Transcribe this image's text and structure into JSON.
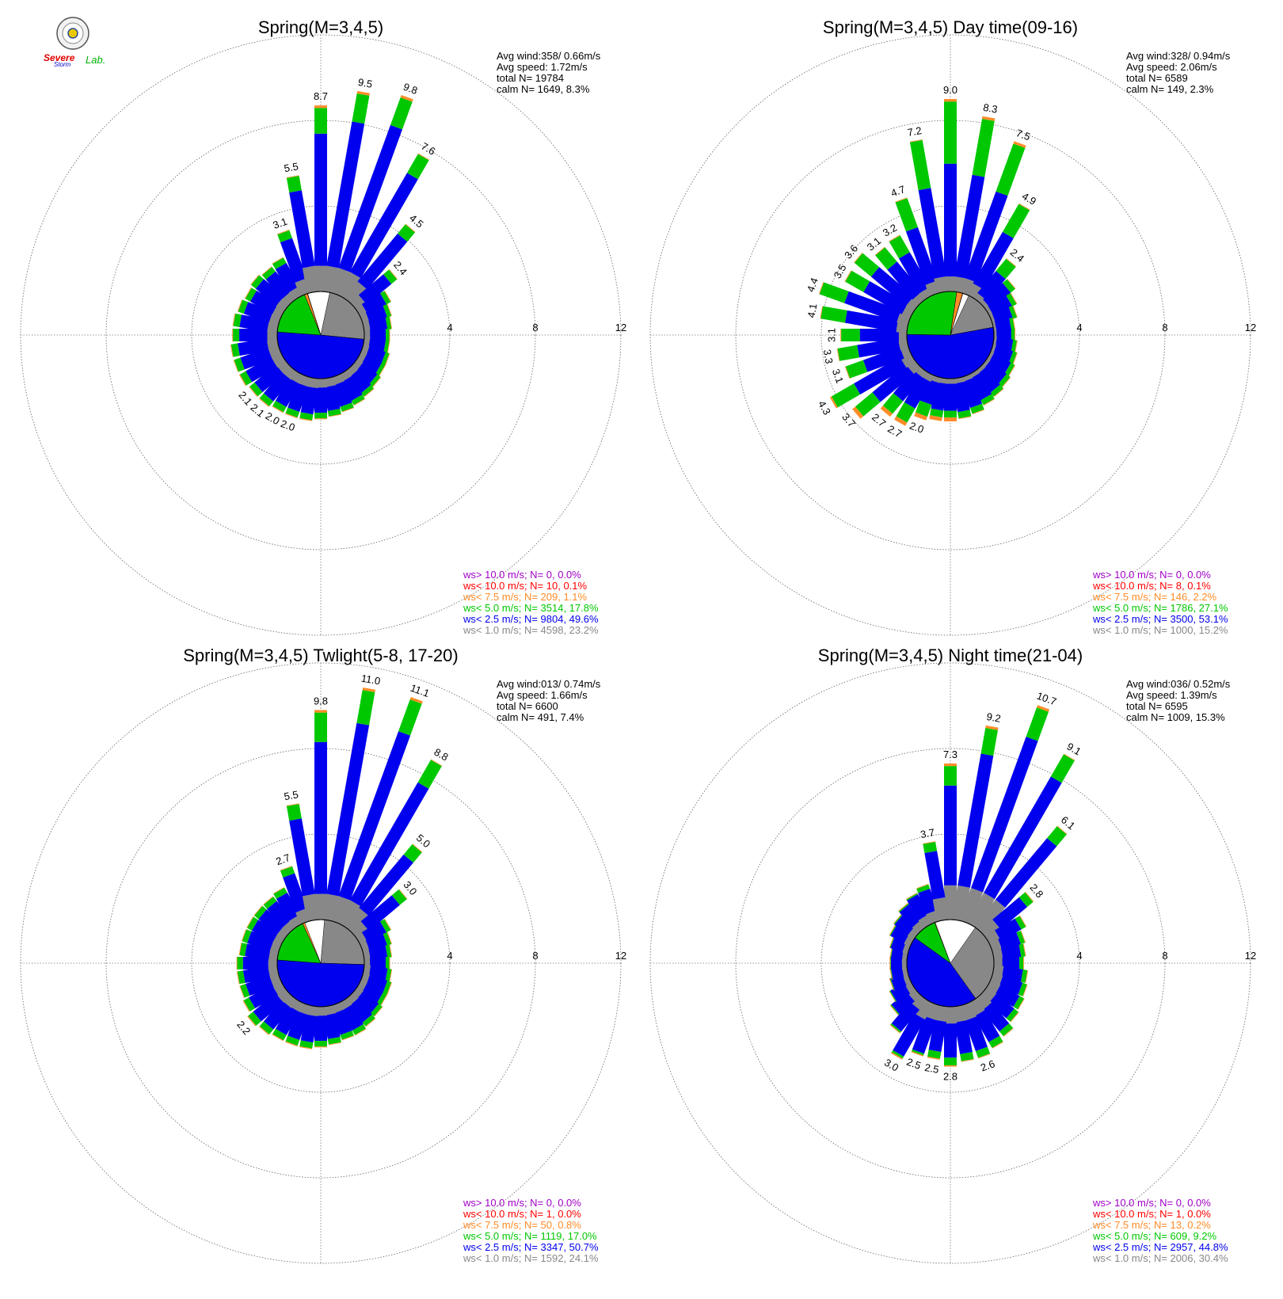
{
  "logo": {
    "line1": "Severe",
    "line2": "Storm",
    "line3": "Lab."
  },
  "axis_ticks": [
    "4",
    "8",
    "12"
  ],
  "palette": {
    "gray": "#888888",
    "blue": "#0000ee",
    "green": "#00c800",
    "orange": "#ff8c28",
    "red": "#ff0000",
    "purple": "#a000c8"
  },
  "chart_data": [
    {
      "type": "windrose",
      "title": "Spring(M=3,4,5)",
      "rlim": [
        0,
        12
      ],
      "stats": [
        "Avg wind:358/ 0.66m/s",
        "Avg speed: 1.72m/s",
        "total N=      19784",
        "calm N=   1649,   8.3%"
      ],
      "legend": [
        "ws> 10.0 m/s; N=     0,  0.0%",
        "ws< 10.0 m/s; N=    10,  0.1%",
        "ws<  7.5 m/s; N=   209,  1.1%",
        "ws<  5.0 m/s; N=  3514, 17.8%",
        "ws<  2.5 m/s; N=  9804, 49.6%",
        "ws<  1.0 m/s; N=  4598, 23.2%"
      ],
      "pie_percent": [
        23.2,
        49.6,
        17.8,
        1.1,
        0.1,
        0.0
      ],
      "directions_deg": [
        0,
        10,
        20,
        30,
        40,
        50,
        60,
        70,
        80,
        90,
        100,
        110,
        120,
        130,
        140,
        150,
        160,
        170,
        180,
        190,
        200,
        210,
        220,
        230,
        240,
        250,
        260,
        270,
        280,
        290,
        300,
        310,
        320,
        330,
        340,
        350
      ],
      "bar_percent": [
        8.7,
        9.5,
        9.8,
        7.6,
        4.5,
        2.4,
        1.6,
        1.4,
        1.3,
        1.2,
        1.2,
        1.3,
        1.3,
        1.4,
        1.5,
        1.6,
        1.7,
        1.8,
        1.9,
        2.0,
        2.0,
        2.0,
        2.1,
        2.1,
        2.2,
        2.2,
        2.2,
        2.1,
        2.1,
        2.0,
        1.9,
        2.0,
        1.9,
        2.0,
        3.1,
        5.5
      ],
      "bar_labels": {
        "0": "8.7",
        "10": "9.5",
        "20": "9.8",
        "30": "7.6",
        "40": "4.5",
        "50": "2.4",
        "200": "2.0",
        "210": "2.0",
        "220": "2.1",
        "230": "2.1",
        "340": "3.1",
        "350": "5.5"
      }
    },
    {
      "type": "windrose",
      "title": "Spring(M=3,4,5) Day time(09-16)",
      "rlim": [
        0,
        12
      ],
      "stats": [
        "Avg wind:328/ 0.94m/s",
        "Avg speed: 2.06m/s",
        "total N=        6589",
        "calm N=     149,   2.3%"
      ],
      "legend": [
        "ws> 10.0 m/s; N=     0,  0.0%",
        "ws< 10.0 m/s; N=     8,  0.1%",
        "ws<  7.5 m/s; N=   146,  2.2%",
        "ws<  5.0 m/s; N=  1786, 27.1%",
        "ws<  2.5 m/s; N=  3500, 53.1%",
        "ws<  1.0 m/s; N=  1000, 15.2%"
      ],
      "pie_percent": [
        15.2,
        53.1,
        27.1,
        2.2,
        0.1,
        0.0
      ],
      "directions_deg": [
        0,
        10,
        20,
        30,
        40,
        50,
        60,
        70,
        80,
        90,
        100,
        110,
        120,
        130,
        140,
        150,
        160,
        170,
        180,
        190,
        200,
        210,
        220,
        230,
        240,
        250,
        260,
        270,
        280,
        290,
        300,
        310,
        320,
        330,
        340,
        350
      ],
      "bar_percent": [
        9.0,
        8.3,
        7.5,
        4.9,
        2.4,
        1.7,
        1.4,
        1.2,
        1.0,
        1.0,
        1.1,
        1.2,
        1.3,
        1.4,
        1.5,
        1.6,
        1.8,
        1.9,
        2.0,
        2.0,
        2.1,
        2.7,
        2.7,
        3.7,
        4.3,
        3.1,
        3.3,
        3.1,
        4.1,
        4.4,
        3.5,
        3.6,
        3.1,
        3.2,
        4.7,
        7.2
      ],
      "bar_labels": {
        "0": "9.0",
        "10": "8.3",
        "20": "7.5",
        "30": "4.9",
        "40": "2.4",
        "200": "2.0",
        "210": "2.7",
        "220": "2.7",
        "230": "3.7",
        "240": "4.3",
        "250": "3.1",
        "260": "3.3",
        "270": "3.1",
        "280": "4.1",
        "290": "4.4",
        "300": "3.5",
        "310": "3.6",
        "320": "3.1",
        "330": "3.2",
        "340": "4.7",
        "350": "7.2"
      }
    },
    {
      "type": "windrose",
      "title": "Spring(M=3,4,5) Twlight(5-8, 17-20)",
      "rlim": [
        0,
        12
      ],
      "stats": [
        "Avg wind:013/ 0.74m/s",
        "Avg speed: 1.66m/s",
        "total N=        6600",
        "calm N=     491,   7.4%"
      ],
      "legend": [
        "ws> 10.0 m/s; N=     0,  0.0%",
        "ws< 10.0 m/s; N=     1,  0.0%",
        "ws<  7.5 m/s; N=    50,  0.8%",
        "ws<  5.0 m/s; N=  1119, 17.0%",
        "ws<  2.5 m/s; N=  3347, 50.7%",
        "ws<  1.0 m/s; N=  1592, 24.1%"
      ],
      "pie_percent": [
        24.1,
        50.7,
        17.0,
        0.8,
        0.0,
        0.0
      ],
      "directions_deg": [
        0,
        10,
        20,
        30,
        40,
        50,
        60,
        70,
        80,
        90,
        100,
        110,
        120,
        130,
        140,
        150,
        160,
        170,
        180,
        190,
        200,
        210,
        220,
        230,
        240,
        250,
        260,
        270,
        280,
        290,
        300,
        310,
        320,
        330,
        340,
        350
      ],
      "bar_percent": [
        9.8,
        11.0,
        11.1,
        8.8,
        5.0,
        3.0,
        1.6,
        1.4,
        1.3,
        1.2,
        1.3,
        1.4,
        1.4,
        1.5,
        1.6,
        1.7,
        1.7,
        1.8,
        1.9,
        2.0,
        2.0,
        2.0,
        2.1,
        2.2,
        2.0,
        1.9,
        1.9,
        1.9,
        1.8,
        1.8,
        1.8,
        1.8,
        1.8,
        1.9,
        2.7,
        5.5
      ],
      "bar_labels": {
        "0": "9.8",
        "10": "11.0",
        "20": "11.1",
        "30": "8.8",
        "40": "5.0",
        "50": "3.0",
        "230": "2.2",
        "340": "2.7",
        "350": "5.5"
      }
    },
    {
      "type": "windrose",
      "title": "Spring(M=3,4,5) Night time(21-04)",
      "rlim": [
        0,
        12
      ],
      "stats": [
        "Avg wind:036/ 0.52m/s",
        "Avg speed: 1.39m/s",
        "total N=        6595",
        "calm N=   1009,  15.3%"
      ],
      "legend": [
        "ws> 10.0 m/s; N=     0,  0.0%",
        "ws< 10.0 m/s; N=     1,  0.0%",
        "ws<  7.5 m/s; N=    13,  0.2%",
        "ws<  5.0 m/s; N=   609,  9.2%",
        "ws<  2.5 m/s; N=  2957, 44.8%",
        "ws<  1.0 m/s; N=  2006, 30.4%"
      ],
      "pie_percent": [
        30.4,
        44.8,
        9.2,
        0.2,
        0.0,
        0.0
      ],
      "directions_deg": [
        0,
        10,
        20,
        30,
        40,
        50,
        60,
        70,
        80,
        90,
        100,
        110,
        120,
        130,
        140,
        150,
        160,
        170,
        180,
        190,
        200,
        210,
        220,
        230,
        240,
        250,
        260,
        270,
        280,
        290,
        300,
        310,
        320,
        330,
        340,
        350
      ],
      "bar_percent": [
        7.3,
        9.2,
        10.7,
        9.1,
        6.1,
        2.8,
        1.9,
        1.6,
        1.5,
        1.4,
        1.6,
        1.7,
        1.8,
        1.9,
        2.2,
        2.4,
        2.6,
        2.6,
        2.8,
        2.5,
        2.5,
        3.0,
        2.0,
        1.4,
        1.1,
        0.9,
        0.8,
        0.8,
        0.8,
        0.9,
        1.1,
        1.2,
        1.4,
        1.6,
        1.8,
        3.7
      ],
      "bar_labels": {
        "0": "7.3",
        "10": "9.2",
        "20": "10.7",
        "30": "9.1",
        "40": "6.1",
        "50": "2.8",
        "160": "2.6",
        "180": "2.8",
        "190": "2.5",
        "200": "2.5",
        "210": "3.0",
        "350": "3.7"
      }
    }
  ]
}
